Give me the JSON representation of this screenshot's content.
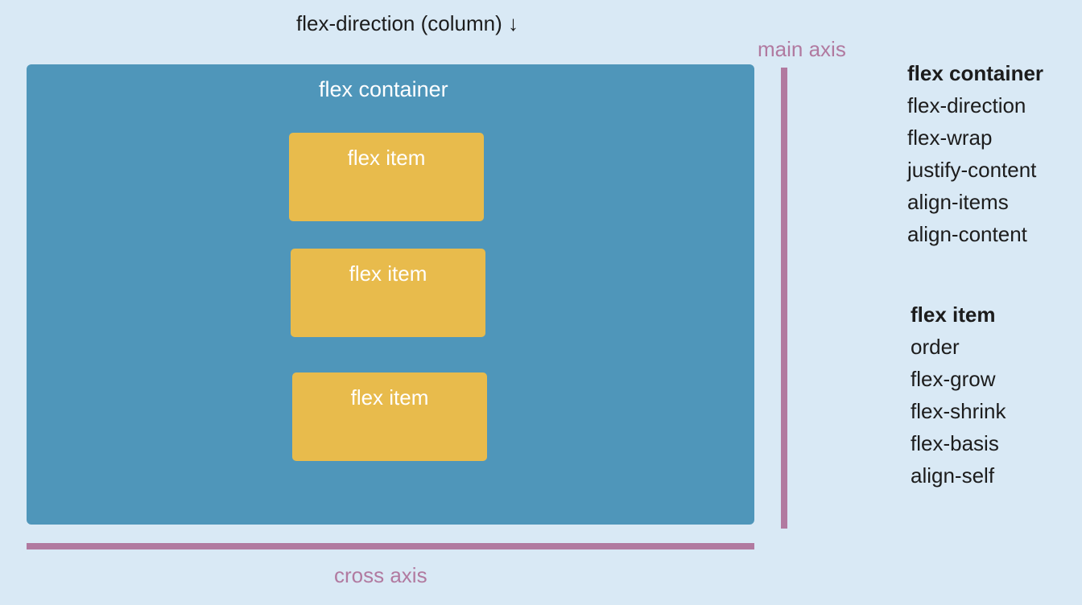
{
  "direction_label": "flex-direction (column) ↓",
  "container": {
    "title": "flex container",
    "items": [
      "flex item",
      "flex item",
      "flex item"
    ]
  },
  "axes": {
    "main_label": "main axis",
    "cross_label": "cross axis"
  },
  "properties": {
    "container": {
      "heading": "flex container",
      "items": [
        "flex-direction",
        "flex-wrap",
        "justify-content",
        "align-items",
        "align-content"
      ]
    },
    "item": {
      "heading": "flex item",
      "items": [
        "order",
        "flex-grow",
        "flex-shrink",
        "flex-basis",
        "align-self"
      ]
    }
  },
  "colors": {
    "background": "#d9e9f5",
    "container": "#4f96ba",
    "item": "#e8bb4c",
    "axis": "#b17aa0"
  }
}
